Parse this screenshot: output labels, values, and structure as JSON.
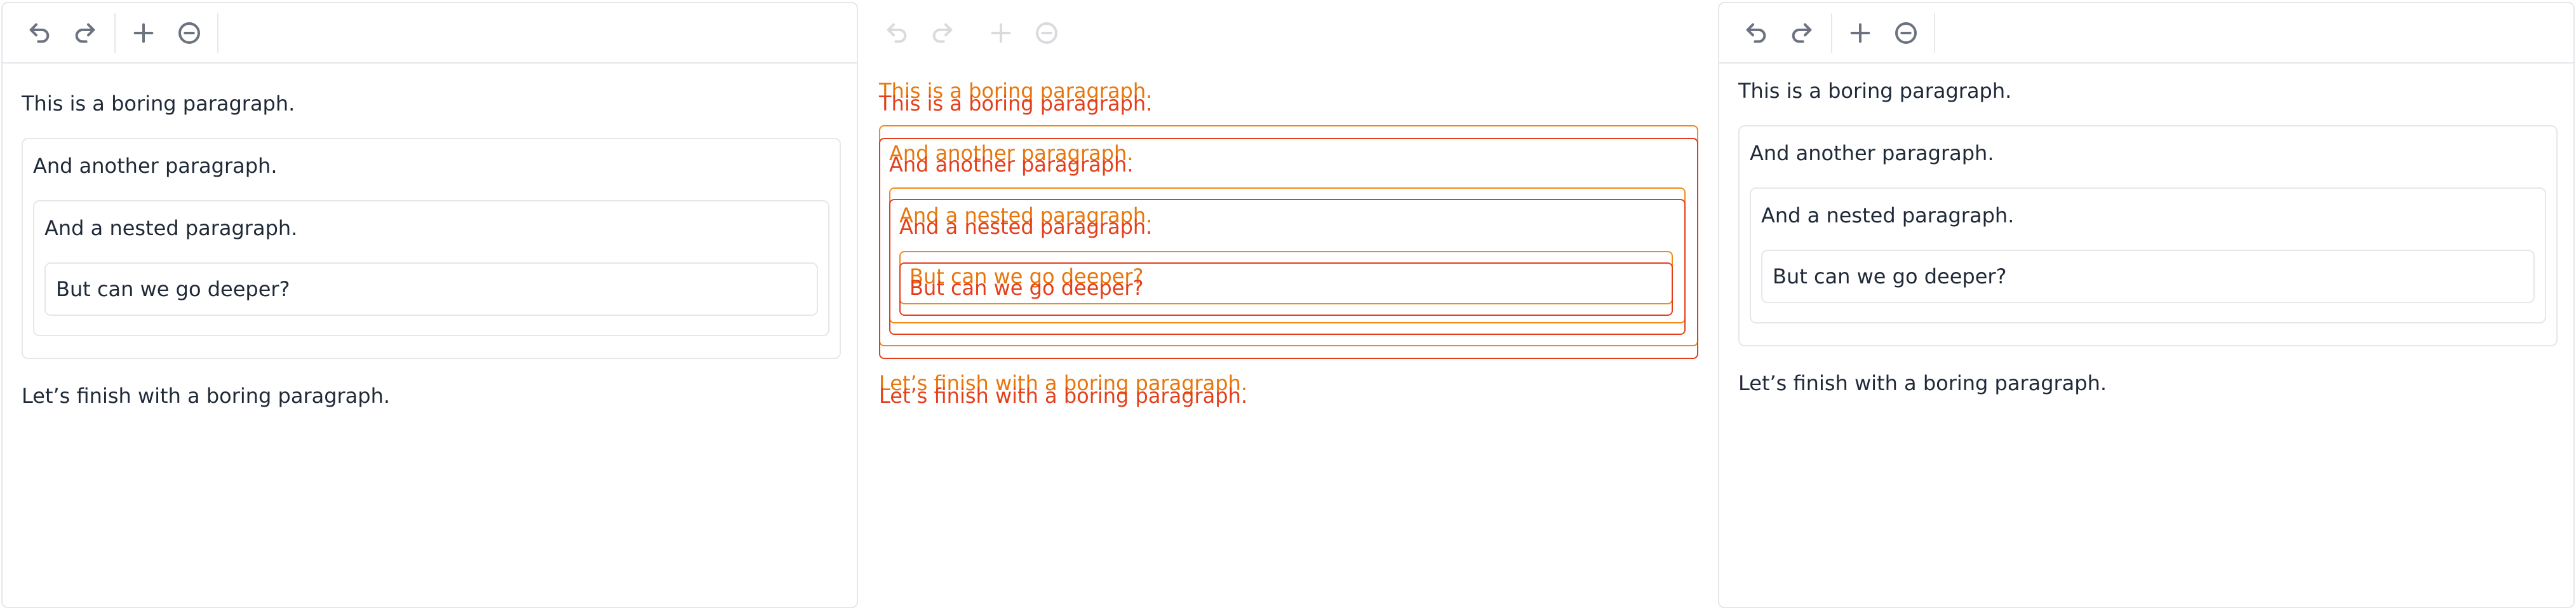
{
  "toolbar": {
    "icons": [
      "undo-icon",
      "redo-icon",
      "plus-icon",
      "minus-circle-icon"
    ]
  },
  "document": {
    "paragraph1": "This is a boring paragraph.",
    "paragraph2": "And another paragraph.",
    "paragraph3": "And a nested paragraph.",
    "paragraph4": "But can we go deeper?",
    "paragraph5": "Let’s finish with a boring paragraph."
  },
  "colors": {
    "text": "#1f2937",
    "border": "#e5e7eb",
    "ghost_orange": "#e8760c",
    "ghost_red": "#e53e1a"
  }
}
